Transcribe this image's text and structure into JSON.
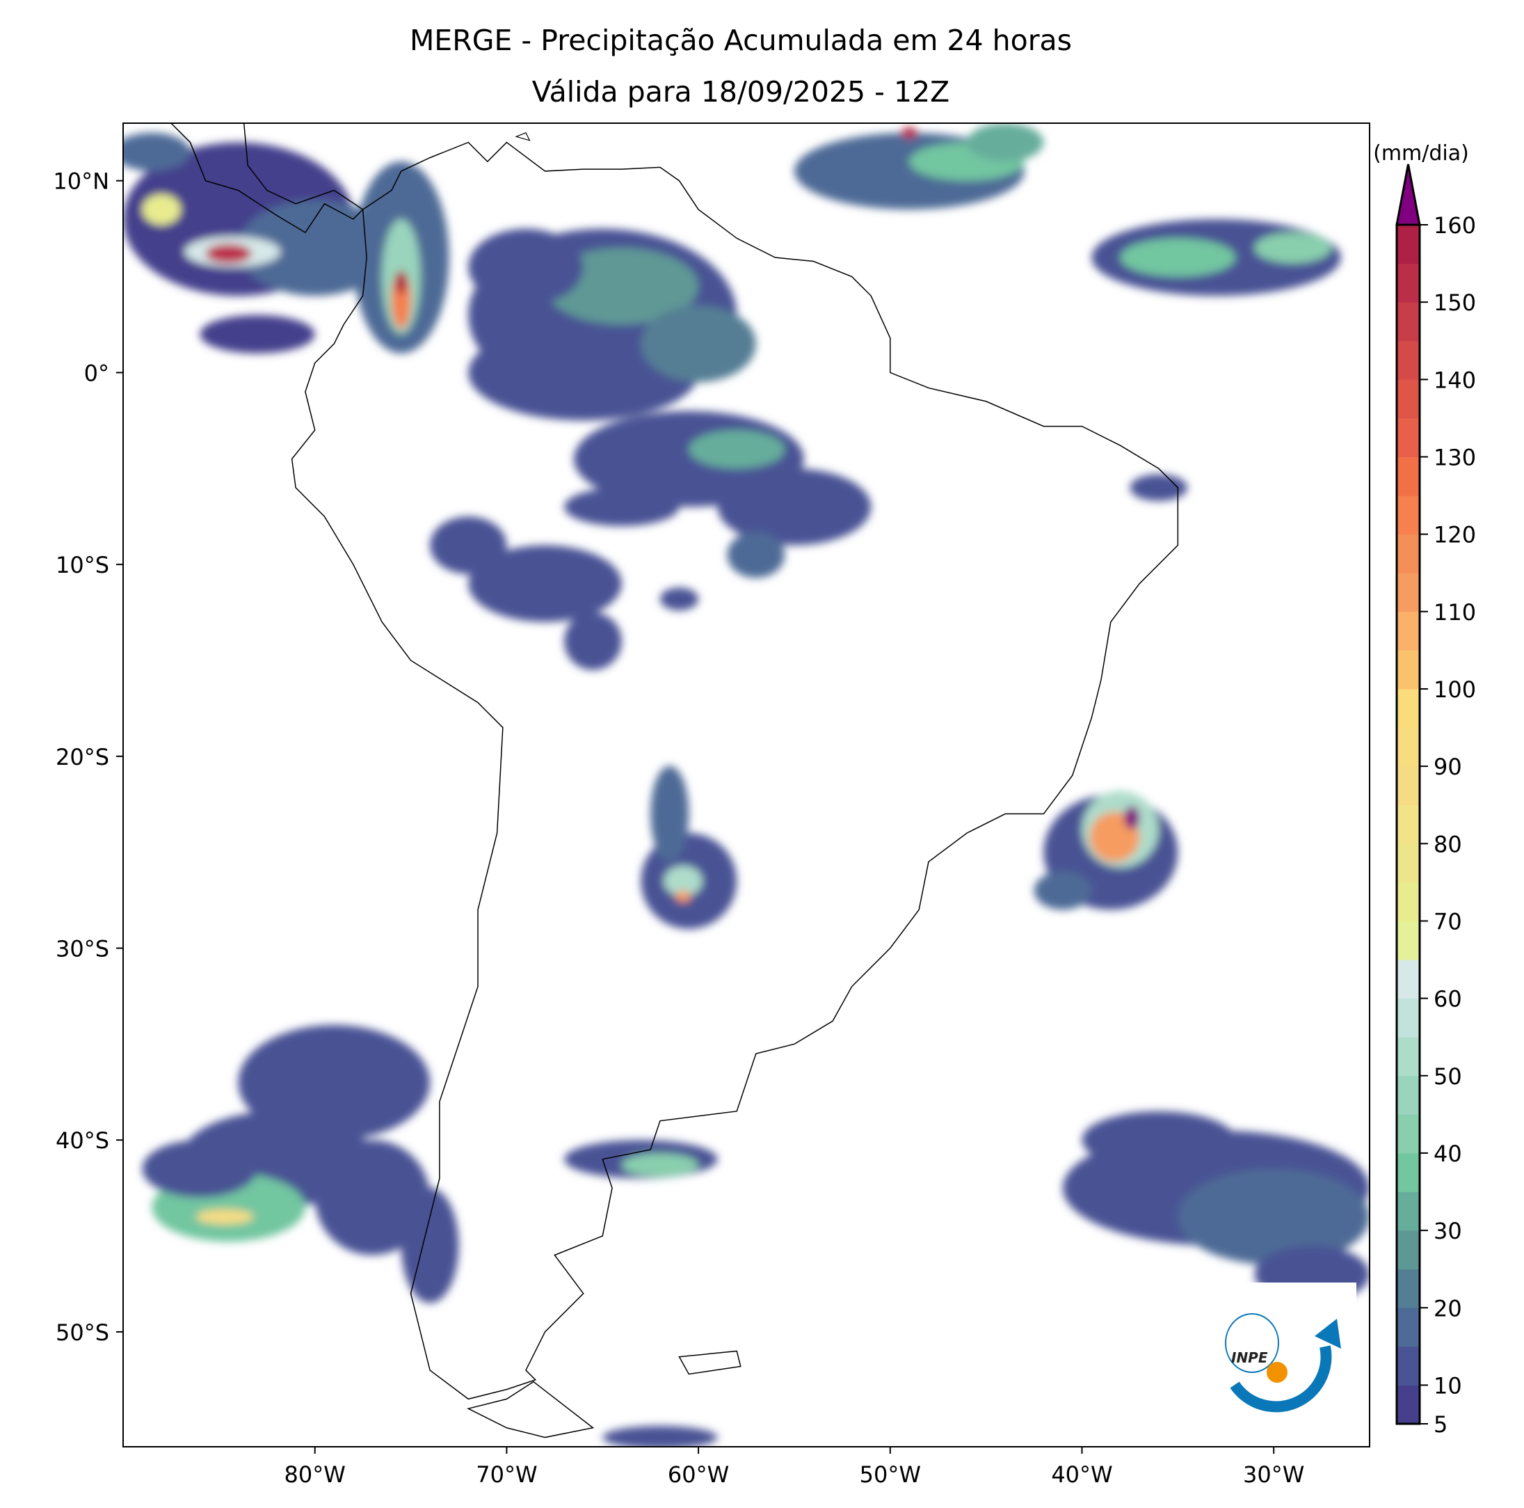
{
  "title": {
    "line1": "MERGE - Precipitação Acumulada em 24 horas",
    "line2": "Válida para 18/09/2025 - 12Z"
  },
  "map": {
    "extent_lon": [
      -90,
      -25
    ],
    "extent_lat": [
      -56,
      13
    ],
    "lon_ticks": [
      {
        "value": -80,
        "label": "80°W"
      },
      {
        "value": -70,
        "label": "70°W"
      },
      {
        "value": -60,
        "label": "60°W"
      },
      {
        "value": -50,
        "label": "50°W"
      },
      {
        "value": -40,
        "label": "40°W"
      },
      {
        "value": -30,
        "label": "30°W"
      }
    ],
    "lat_ticks": [
      {
        "value": 10,
        "label": "10°N"
      },
      {
        "value": 0,
        "label": "0°"
      },
      {
        "value": -10,
        "label": "10°S"
      },
      {
        "value": -20,
        "label": "20°S"
      },
      {
        "value": -30,
        "label": "30°S"
      },
      {
        "value": -40,
        "label": "40°S"
      },
      {
        "value": -50,
        "label": "50°S"
      }
    ]
  },
  "colorbar": {
    "unit_label": "(mm/dia)",
    "min": 5,
    "max": 160,
    "extend_color": "#800080",
    "tick_labels": [
      "5",
      "10",
      "20",
      "30",
      "40",
      "50",
      "60",
      "70",
      "80",
      "90",
      "100",
      "110",
      "120",
      "130",
      "140",
      "150",
      "160"
    ],
    "levels": [
      5,
      10,
      15,
      20,
      25,
      30,
      35,
      40,
      45,
      50,
      55,
      60,
      65,
      70,
      75,
      80,
      85,
      90,
      95,
      100,
      105,
      110,
      115,
      120,
      125,
      130,
      135,
      140,
      145,
      150,
      155
    ],
    "colors": [
      "#453f8c",
      "#4a5394",
      "#4e6a96",
      "#547e94",
      "#5e9895",
      "#66ad9b",
      "#72c6a0",
      "#89cfad",
      "#9ad4bc",
      "#aedcca",
      "#c2e3dc",
      "#d6e8e8",
      "#e4f09a",
      "#e8ec8e",
      "#ede58a",
      "#f2e288",
      "#f5dc84",
      "#f8dc80",
      "#fadc7c",
      "#fbc26e",
      "#fab26a",
      "#f69c60",
      "#f58f58",
      "#f6804e",
      "#f27048",
      "#e8604a",
      "#df5648",
      "#d44a48",
      "#c83e48",
      "#bb2e48",
      "#ae2045"
    ]
  },
  "logo": {
    "text": "INPE",
    "primary_color": "#0a77b8",
    "accent_color": "#f39200"
  }
}
